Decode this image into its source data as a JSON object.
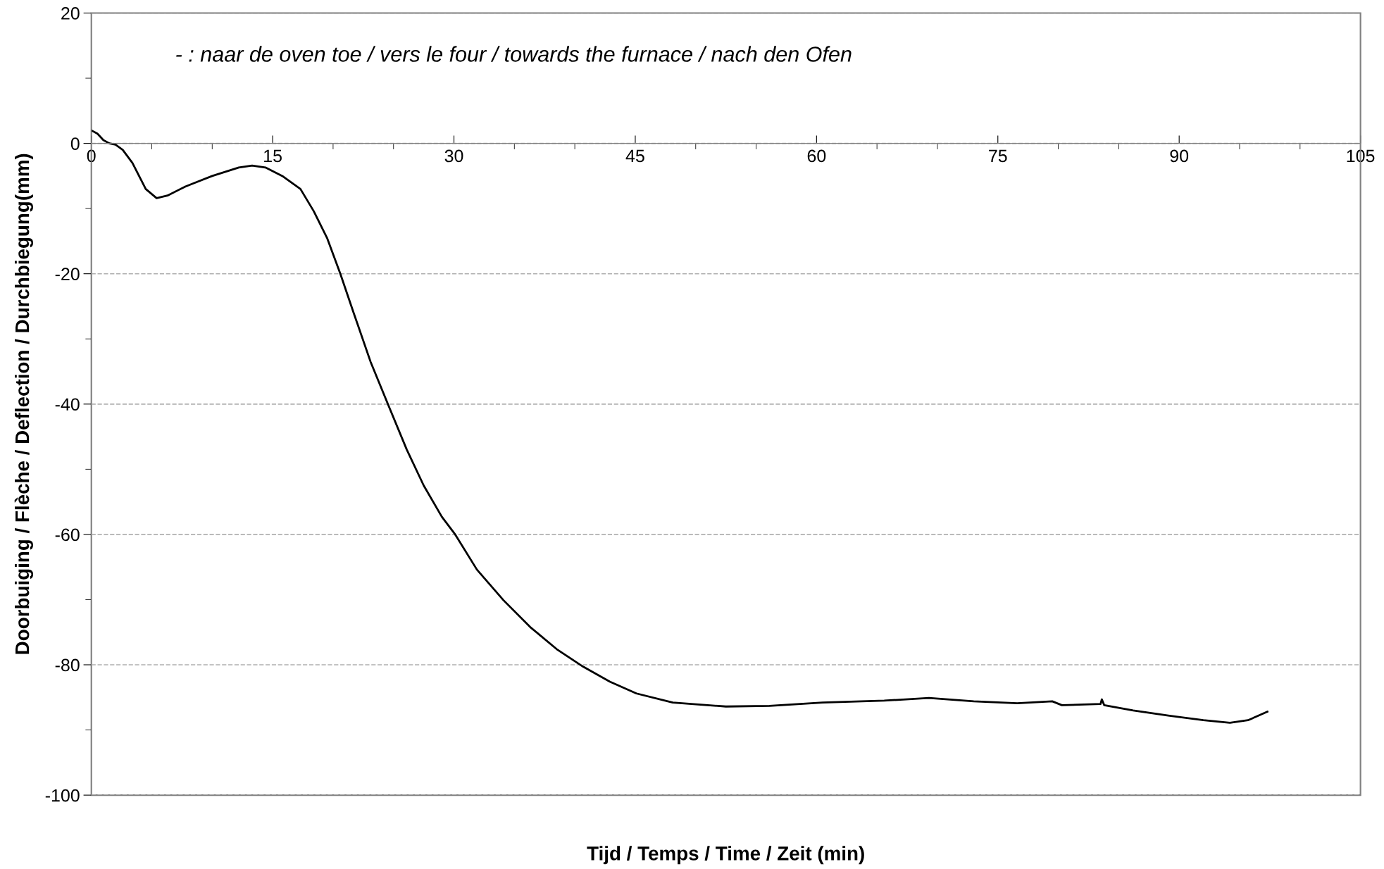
{
  "chart_data": {
    "type": "line",
    "xlabel": "Tijd / Temps / Time / Zeit (min)",
    "ylabel": "Doorbuiging / Flèche / Deflection / Durchbiegung(mm)",
    "annotations": [
      "- : naar de oven toe / vers le four / towards the furnace / nach den Ofen"
    ],
    "x": [
      0,
      0.5,
      1,
      1.5,
      2,
      2.6,
      3.4,
      4.5,
      5.4,
      6.3,
      7.8,
      10,
      12.2,
      13.3,
      14.4,
      15.8,
      17.3,
      18.4,
      19.5,
      20.6,
      21.7,
      23.1,
      24.6,
      26.1,
      27.5,
      29,
      30.1,
      31.9,
      34.1,
      36.3,
      38.5,
      40.7,
      42.9,
      45.1,
      48.1,
      52.5,
      56.1,
      60.5,
      65.6,
      69.3,
      73,
      76.6,
      79.5,
      80.3,
      83.5,
      83.6,
      83.8,
      86.2,
      89.1,
      92,
      94.2,
      95.7,
      97.3
    ],
    "series": [
      {
        "color": "#000000",
        "values": [
          2,
          1.5,
          0.5,
          0,
          -0.2,
          -1,
          -3,
          -7,
          -8.4,
          -8,
          -6.6,
          -5,
          -3.7,
          -3.4,
          -3.7,
          -5,
          -7,
          -10.4,
          -14.5,
          -20,
          -26,
          -33.5,
          -40.3,
          -47,
          -52.5,
          -57.3,
          -60,
          -65.4,
          -70.1,
          -74.2,
          -77.6,
          -80.3,
          -82.6,
          -84.4,
          -85.8,
          -86.4,
          -86.3,
          -85.8,
          -85.5,
          -85.1,
          -85.6,
          -85.9,
          -85.6,
          -86.2,
          -86,
          -85.3,
          -86.2,
          -87,
          -87.8,
          -88.5,
          -88.9,
          -88.5,
          -87.2
        ]
      }
    ],
    "xlim": [
      0,
      105
    ],
    "xticks": [
      0,
      {
        "value": 5,
        "label": null
      },
      {
        "value": 10,
        "label": null
      },
      15,
      {
        "value": 20,
        "label": null
      },
      {
        "value": 25,
        "label": null
      },
      30,
      {
        "value": 35,
        "label": null
      },
      {
        "value": 40,
        "label": null
      },
      45,
      {
        "value": 50,
        "label": null
      },
      {
        "value": 55,
        "label": null
      },
      60,
      {
        "value": 65,
        "label": null
      },
      {
        "value": 70,
        "label": null
      },
      75,
      {
        "value": 80,
        "label": null
      },
      {
        "value": 85,
        "label": null
      },
      90,
      {
        "value": 95,
        "label": null
      },
      {
        "value": 100,
        "label": null
      },
      105
    ],
    "ylim": [
      -100,
      20
    ],
    "yticks": [
      -100,
      {
        "value": -90,
        "label": null
      },
      -80,
      {
        "value": -70,
        "label": null
      },
      -60,
      {
        "value": -50,
        "label": null
      },
      -40,
      {
        "value": -30,
        "label": null
      },
      -20,
      {
        "value": -10,
        "label": null
      },
      0,
      {
        "value": 10,
        "label": null
      },
      20
    ],
    "grid": "y",
    "marker": "none",
    "line_style": "solid",
    "legend": false
  }
}
